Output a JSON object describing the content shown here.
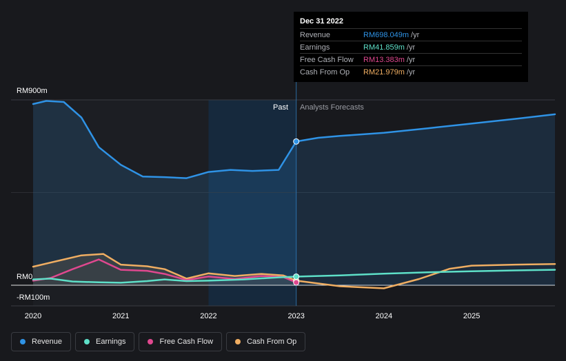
{
  "chart_data": {
    "type": "line",
    "y_axis": {
      "top_label": "RM900m",
      "zero_label": "RM0",
      "bottom_label": "-RM100m",
      "range_m": [
        -100,
        900
      ]
    },
    "x_axis": {
      "ticks": [
        "2020",
        "2021",
        "2022",
        "2023",
        "2024",
        "2025"
      ],
      "range": [
        2020.0,
        2025.95
      ]
    },
    "past_label": "Past",
    "forecast_label": "Analysts Forecasts",
    "divider_x": 2023.0,
    "highlight_start_x": 2022.0,
    "series": [
      {
        "name": "Revenue",
        "color": "#2f93e6",
        "points": [
          [
            2020.0,
            880
          ],
          [
            2020.15,
            895
          ],
          [
            2020.35,
            890
          ],
          [
            2020.55,
            815
          ],
          [
            2020.75,
            670
          ],
          [
            2021.0,
            585
          ],
          [
            2021.25,
            528
          ],
          [
            2021.5,
            525
          ],
          [
            2021.75,
            520
          ],
          [
            2022.0,
            550
          ],
          [
            2022.25,
            560
          ],
          [
            2022.5,
            555
          ],
          [
            2022.8,
            560
          ],
          [
            2023.0,
            698.049
          ],
          [
            2023.25,
            716
          ],
          [
            2023.5,
            725
          ],
          [
            2024.0,
            740
          ],
          [
            2024.5,
            762
          ],
          [
            2025.0,
            785
          ],
          [
            2025.5,
            808
          ],
          [
            2025.95,
            830
          ]
        ]
      },
      {
        "name": "Earnings",
        "color": "#5ee0c8",
        "points": [
          [
            2020.0,
            28
          ],
          [
            2020.2,
            32
          ],
          [
            2020.45,
            18
          ],
          [
            2020.75,
            14
          ],
          [
            2021.0,
            12
          ],
          [
            2021.3,
            20
          ],
          [
            2021.5,
            28
          ],
          [
            2021.75,
            20
          ],
          [
            2022.0,
            22
          ],
          [
            2022.4,
            28
          ],
          [
            2022.8,
            38
          ],
          [
            2023.0,
            41.859
          ],
          [
            2023.5,
            48
          ],
          [
            2024.0,
            56
          ],
          [
            2024.5,
            63
          ],
          [
            2025.0,
            68
          ],
          [
            2025.5,
            72
          ],
          [
            2025.95,
            75
          ]
        ]
      },
      {
        "name": "Free Cash Flow",
        "color": "#e0488f",
        "points": [
          [
            2020.0,
            22
          ],
          [
            2020.2,
            35
          ],
          [
            2020.45,
            78
          ],
          [
            2020.75,
            125
          ],
          [
            2021.0,
            75
          ],
          [
            2021.3,
            70
          ],
          [
            2021.5,
            55
          ],
          [
            2021.75,
            25
          ],
          [
            2022.0,
            42
          ],
          [
            2022.3,
            30
          ],
          [
            2022.6,
            45
          ],
          [
            2022.85,
            40
          ],
          [
            2023.0,
            13.383
          ]
        ]
      },
      {
        "name": "Cash From Op",
        "color": "#f0ae62",
        "points": [
          [
            2020.0,
            90
          ],
          [
            2020.3,
            120
          ],
          [
            2020.55,
            145
          ],
          [
            2020.8,
            152
          ],
          [
            2021.0,
            100
          ],
          [
            2021.3,
            92
          ],
          [
            2021.5,
            78
          ],
          [
            2021.75,
            32
          ],
          [
            2022.0,
            58
          ],
          [
            2022.3,
            45
          ],
          [
            2022.6,
            55
          ],
          [
            2022.85,
            48
          ],
          [
            2023.0,
            21.979
          ],
          [
            2023.5,
            -5
          ],
          [
            2024.0,
            -15
          ],
          [
            2024.4,
            30
          ],
          [
            2024.75,
            80
          ],
          [
            2025.0,
            95
          ],
          [
            2025.5,
            100
          ],
          [
            2025.95,
            103
          ]
        ]
      }
    ]
  },
  "tooltip": {
    "date": "Dec 31 2022",
    "rows": [
      {
        "label": "Revenue",
        "value": "RM698.049m",
        "unit": "/yr",
        "color": "#2f93e6"
      },
      {
        "label": "Earnings",
        "value": "RM41.859m",
        "unit": "/yr",
        "color": "#5ee0c8"
      },
      {
        "label": "Free Cash Flow",
        "value": "RM13.383m",
        "unit": "/yr",
        "color": "#e0488f"
      },
      {
        "label": "Cash From Op",
        "value": "RM21.979m",
        "unit": "/yr",
        "color": "#f0ae62"
      }
    ]
  },
  "legend": [
    {
      "label": "Revenue",
      "color": "#2f93e6"
    },
    {
      "label": "Earnings",
      "color": "#5ee0c8"
    },
    {
      "label": "Free Cash Flow",
      "color": "#e0488f"
    },
    {
      "label": "Cash From Op",
      "color": "#f0ae62"
    }
  ]
}
